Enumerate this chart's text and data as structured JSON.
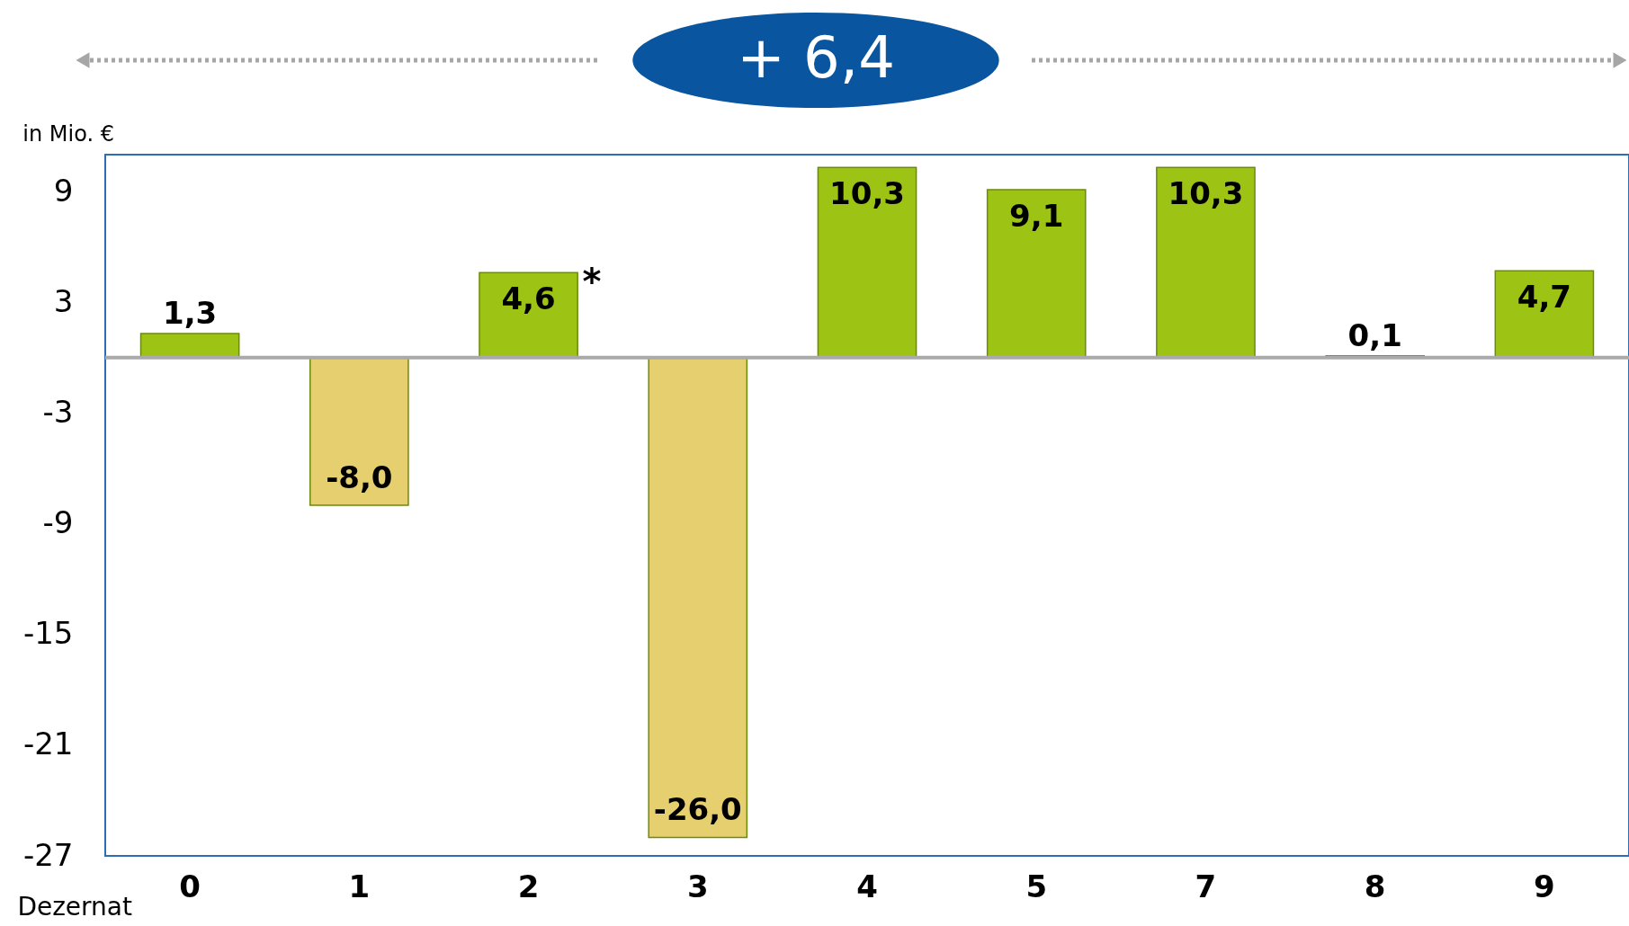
{
  "chart_data": {
    "type": "bar",
    "xlabel": "Dezernat",
    "ylabel": "in Mio. €",
    "categories": [
      "0",
      "1",
      "2",
      "3",
      "4",
      "5",
      "7",
      "8",
      "9"
    ],
    "values": [
      1.3,
      -8.0,
      4.6,
      -26.0,
      10.3,
      9.1,
      10.3,
      0.1,
      4.7
    ],
    "colors": [
      "#9dc414",
      "#e6cf6e",
      "#9dc414",
      "#e6cf6e",
      "#9dc414",
      "#9dc414",
      "#9dc414",
      "#9dc414",
      "#9dc414"
    ],
    "value_labels": [
      "1,3",
      "-8,0",
      "4,6",
      "-26,0",
      "10,3",
      "9,1",
      "10,3",
      "0,1",
      "4,7"
    ],
    "ylim": [
      -27,
      11
    ],
    "yticks": [
      9,
      3,
      -3,
      -9,
      -15,
      -21,
      -27
    ],
    "ref_lines": [
      {
        "axis": "y",
        "value": 0,
        "color": "#aaaaaa"
      }
    ],
    "annotations": [
      "+ 6,4",
      {
        "text": "*",
        "x": "2",
        "y": 4.6
      }
    ],
    "grid": false
  }
}
